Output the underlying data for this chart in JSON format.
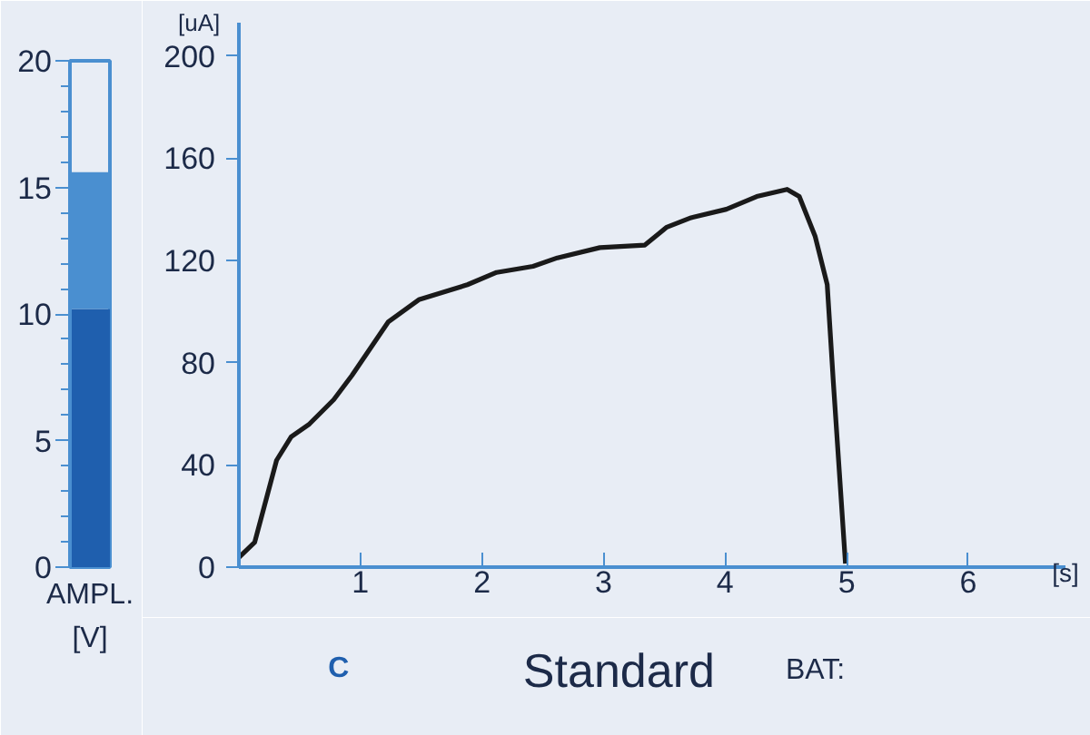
{
  "chart_data": [
    {
      "type": "bar",
      "xlabel": "AMPL. [V]",
      "categories": [
        null
      ],
      "stacked": true,
      "series": [
        {
          "color": "#1f5fae",
          "values": [
            10.2
          ]
        },
        {
          "color": "#4a8fd0",
          "values": [
            5.4
          ]
        }
      ],
      "ylim": [
        0,
        20
      ],
      "yticks": [
        0,
        5,
        10,
        15,
        20
      ]
    },
    {
      "type": "line",
      "xlabel": "[s]",
      "ylabel": "[uA]",
      "xlim": [
        0,
        6.8
      ],
      "ylim": [
        0,
        213
      ],
      "xticks": [
        1,
        2,
        3,
        4,
        5,
        6
      ],
      "yticks": [
        0,
        40,
        80,
        120,
        160,
        200
      ],
      "line_style": "solid",
      "series": [
        {
          "color": "#1a1a1a",
          "x": [
            0,
            0.13,
            0.23,
            0.31,
            0.43,
            0.58,
            0.78,
            0.93,
            1.03,
            1.23,
            1.48,
            1.88,
            2.12,
            2.42,
            2.62,
            2.97,
            3.34,
            3.52,
            3.72,
            4.01,
            4.26,
            4.51,
            4.61,
            4.74,
            4.84,
            4.89,
            4.94,
            4.99
          ],
          "values": [
            3.8,
            9.7,
            27.5,
            41.8,
            51,
            56,
            65.5,
            75,
            82,
            96,
            104.6,
            110.5,
            115.3,
            117.7,
            121,
            125,
            126,
            133,
            136.7,
            140,
            145,
            147.8,
            145,
            129.5,
            110.5,
            72.6,
            37,
            1.4
          ]
        }
      ]
    },
    {
      "type": "other",
      "annotations": [
        "C",
        "Standard",
        "BAT:"
      ]
    }
  ]
}
